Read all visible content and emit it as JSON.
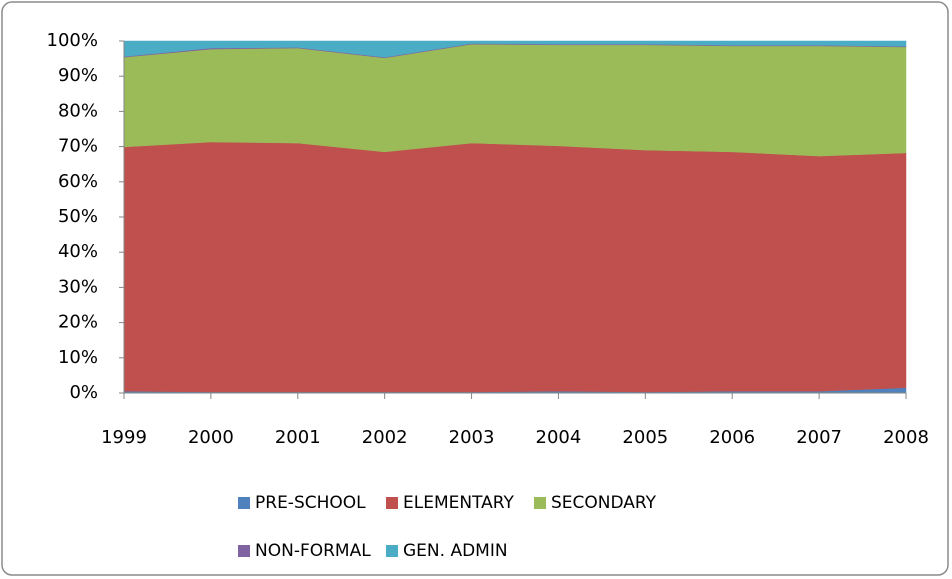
{
  "chart_data": {
    "type": "area",
    "stacked": true,
    "categories": [
      "1999",
      "2000",
      "2001",
      "2002",
      "2003",
      "2004",
      "2005",
      "2006",
      "2007",
      "2008"
    ],
    "series": [
      {
        "name": "PRE-SCHOOL",
        "color": "#4f81bd",
        "values": [
          0.5,
          0.3,
          0.3,
          0.3,
          0.3,
          0.5,
          0.3,
          0.5,
          0.5,
          1.5
        ]
      },
      {
        "name": "ELEMENTARY",
        "color": "#c0504d",
        "values": [
          69.4,
          71,
          70.7,
          68.2,
          70.7,
          69.7,
          68.7,
          68,
          66.8,
          66.7
        ]
      },
      {
        "name": "SECONDARY",
        "color": "#9bbb59",
        "values": [
          25.5,
          26.4,
          27,
          26.7,
          28.1,
          28.7,
          29.9,
          30.1,
          31.3,
          30.1
        ]
      },
      {
        "name": "NON-FORMAL",
        "color": "#8064a2",
        "values": [
          0.2,
          0.3,
          0.2,
          0.2,
          0.2,
          0.2,
          0.2,
          0.2,
          0.2,
          0.2
        ]
      },
      {
        "name": "GEN. ADMIN",
        "color": "#4bacc6",
        "values": [
          4.4,
          2.0,
          1.8,
          4.6,
          0.7,
          0.9,
          0.9,
          1.2,
          1.2,
          1.5
        ]
      }
    ],
    "ylim": [
      0,
      100
    ],
    "yticks": [
      {
        "value": 0,
        "label": "0%"
      },
      {
        "value": 10,
        "label": "10%"
      },
      {
        "value": 20,
        "label": "20%"
      },
      {
        "value": 30,
        "label": "30%"
      },
      {
        "value": 40,
        "label": "40%"
      },
      {
        "value": 50,
        "label": "50%"
      },
      {
        "value": 60,
        "label": "60%"
      },
      {
        "value": 70,
        "label": "70%"
      },
      {
        "value": 80,
        "label": "80%"
      },
      {
        "value": 90,
        "label": "90%"
      },
      {
        "value": 100,
        "label": "100%"
      }
    ],
    "grid": false,
    "legend": "bottom"
  }
}
